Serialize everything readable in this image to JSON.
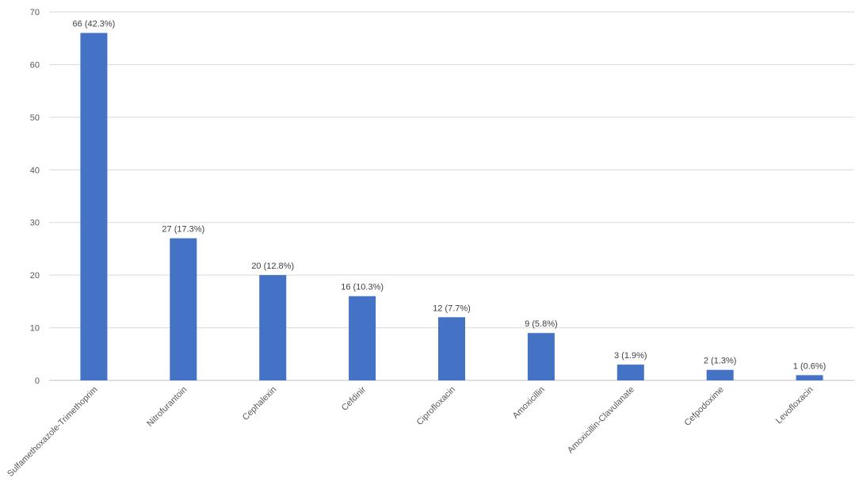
{
  "chart_data": {
    "type": "bar",
    "categories": [
      "Sulfamethoxazole-Trimethoprim",
      "Nitrofurantoin",
      "Cephalexin",
      "Cefdinir",
      "Ciprofloxacin",
      "Amoxicillin",
      "Amoxicillin-Clavulanate",
      "Cefpodoxime",
      "Levofloxacin"
    ],
    "values": [
      66,
      27,
      20,
      16,
      12,
      9,
      3,
      2,
      1
    ],
    "data_labels": [
      "66 (42.3%)",
      "27 (17.3%)",
      "20 (12.8%)",
      "16 (10.3%)",
      "12 (7.7%)",
      "9 (5.8%)",
      "3 (1.9%)",
      "2 (1.3%)",
      "1 (0.6%)"
    ],
    "yticks": [
      "0",
      "10",
      "20",
      "30",
      "40",
      "50",
      "60",
      "70"
    ],
    "ylim": [
      0,
      70
    ],
    "grid": true,
    "bar_color": "#4472C4"
  }
}
